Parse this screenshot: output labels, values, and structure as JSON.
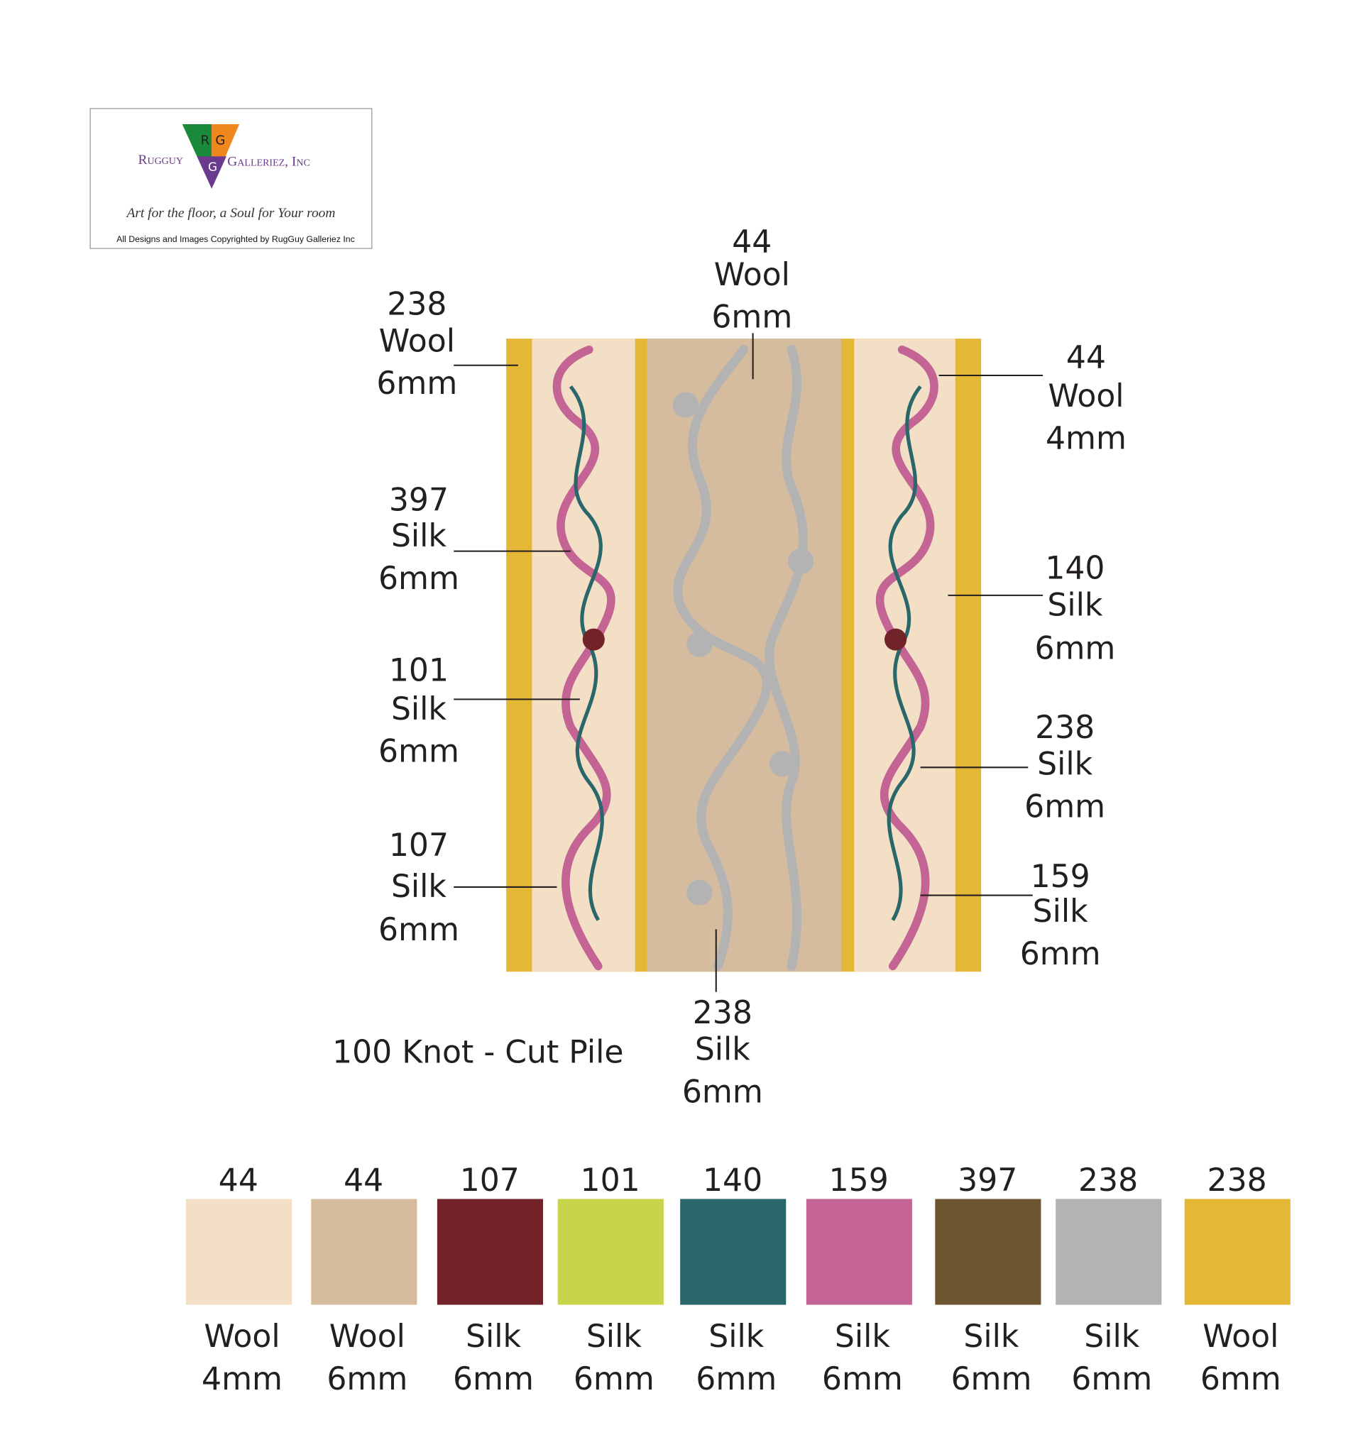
{
  "logo": {
    "brand_left": "Rugguy",
    "monogram": [
      "R",
      "G",
      "G"
    ],
    "brand_right": "Galleriez, Inc",
    "tagline": "Art for the floor, a Soul for Your room",
    "copyright": "All Designs and Images Copyrighted by RugGuy Galleriez Inc"
  },
  "callouts": [
    {
      "code": "44",
      "material": "Wool",
      "size": "6mm"
    },
    {
      "code": "238",
      "material": "Wool",
      "size": "6mm"
    },
    {
      "code": "397",
      "material": "Silk",
      "size": "6mm"
    },
    {
      "code": "101",
      "material": "Silk",
      "size": "6mm"
    },
    {
      "code": "107",
      "material": "Silk",
      "size": "6mm"
    },
    {
      "code": "44",
      "material": "Wool",
      "size": "4mm"
    },
    {
      "code": "140",
      "material": "Silk",
      "size": "6mm"
    },
    {
      "code": "238",
      "material": "Silk",
      "size": "6mm"
    },
    {
      "code": "159",
      "material": "Silk",
      "size": "6mm"
    },
    {
      "code": "238",
      "material": "Silk",
      "size": "6mm"
    }
  ],
  "construction": "100 Knot - Cut Pile",
  "swatches": [
    {
      "code": "44",
      "material": "Wool",
      "size": "4mm",
      "color": "#f3dfc5"
    },
    {
      "code": "44",
      "material": "Wool",
      "size": "6mm",
      "color": "#d6bc9f"
    },
    {
      "code": "107",
      "material": "Silk",
      "size": "6mm",
      "color": "#72232a"
    },
    {
      "code": "101",
      "material": "Silk",
      "size": "6mm",
      "color": "#c8d44a"
    },
    {
      "code": "140",
      "material": "Silk",
      "size": "6mm",
      "color": "#29676a"
    },
    {
      "code": "159",
      "material": "Silk",
      "size": "6mm",
      "color": "#c46495"
    },
    {
      "code": "397",
      "material": "Silk",
      "size": "6mm",
      "color": "#6e5532"
    },
    {
      "code": "238",
      "material": "Silk",
      "size": "6mm",
      "color": "#b3b3b3"
    },
    {
      "code": "238",
      "material": "Wool",
      "size": "6mm",
      "color": "#e4b737"
    }
  ]
}
